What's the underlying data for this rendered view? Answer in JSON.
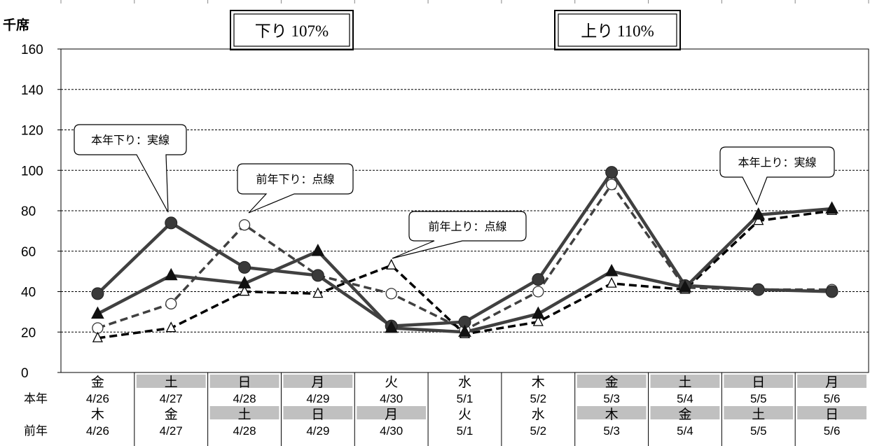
{
  "chart_data": {
    "type": "line",
    "ylabel": "千席",
    "ylim": [
      0,
      160
    ],
    "yticks": [
      0,
      20,
      40,
      60,
      80,
      100,
      120,
      140,
      160
    ],
    "grid": true,
    "header_boxes": [
      "下り 107%",
      "上り 110%"
    ],
    "row_labels": {
      "current": "本年",
      "previous": "前年"
    },
    "days": [
      {
        "cur_dow": "金",
        "cur_date": "4/26",
        "cur_shaded": false,
        "prev_dow": "木",
        "prev_date": "4/26",
        "prev_shaded": false
      },
      {
        "cur_dow": "土",
        "cur_date": "4/27",
        "cur_shaded": true,
        "prev_dow": "金",
        "prev_date": "4/27",
        "prev_shaded": false
      },
      {
        "cur_dow": "日",
        "cur_date": "4/28",
        "cur_shaded": true,
        "prev_dow": "土",
        "prev_date": "4/28",
        "prev_shaded": true
      },
      {
        "cur_dow": "月",
        "cur_date": "4/29",
        "cur_shaded": true,
        "prev_dow": "日",
        "prev_date": "4/29",
        "prev_shaded": true
      },
      {
        "cur_dow": "火",
        "cur_date": "4/30",
        "cur_shaded": false,
        "prev_dow": "月",
        "prev_date": "4/30",
        "prev_shaded": true
      },
      {
        "cur_dow": "水",
        "cur_date": "5/1",
        "cur_shaded": false,
        "prev_dow": "火",
        "prev_date": "5/1",
        "prev_shaded": false
      },
      {
        "cur_dow": "木",
        "cur_date": "5/2",
        "cur_shaded": false,
        "prev_dow": "水",
        "prev_date": "5/2",
        "prev_shaded": false
      },
      {
        "cur_dow": "金",
        "cur_date": "5/3",
        "cur_shaded": true,
        "prev_dow": "木",
        "prev_date": "5/3",
        "prev_shaded": true
      },
      {
        "cur_dow": "土",
        "cur_date": "5/4",
        "cur_shaded": true,
        "prev_dow": "金",
        "prev_date": "5/4",
        "prev_shaded": true
      },
      {
        "cur_dow": "日",
        "cur_date": "5/5",
        "cur_shaded": true,
        "prev_dow": "土",
        "prev_date": "5/5",
        "prev_shaded": true
      },
      {
        "cur_dow": "月",
        "cur_date": "5/6",
        "cur_shaded": true,
        "prev_dow": "日",
        "prev_date": "5/6",
        "prev_shaded": true
      }
    ],
    "series": [
      {
        "key": "cur_down",
        "style": "solid",
        "marker": "circle-filled",
        "values": [
          39,
          74,
          52,
          48,
          23,
          25,
          46,
          99,
          43,
          41,
          40
        ]
      },
      {
        "key": "prev_down",
        "style": "dashed",
        "marker": "circle-open",
        "values": [
          22,
          34,
          73,
          48,
          39,
          21,
          40,
          93,
          42,
          41,
          41
        ]
      },
      {
        "key": "cur_up",
        "style": "solid",
        "marker": "triangle-filled",
        "values": [
          29,
          48,
          44,
          60,
          22,
          20,
          29,
          50,
          42,
          78,
          81
        ]
      },
      {
        "key": "prev_up",
        "style": "dashed",
        "marker": "triangle-open",
        "values": [
          17,
          22,
          40,
          39,
          53,
          19,
          25,
          44,
          41,
          75,
          80
        ]
      }
    ],
    "callouts": [
      "本年下り：実線",
      "前年下り：点線",
      "前年上り：点線",
      "本年上り：実線"
    ],
    "colors": {
      "dark_line": "#404040",
      "dashed_line": "#000000",
      "dashed_down": "#404040",
      "grid": "#000000",
      "shade": "#c0c0c0"
    }
  }
}
